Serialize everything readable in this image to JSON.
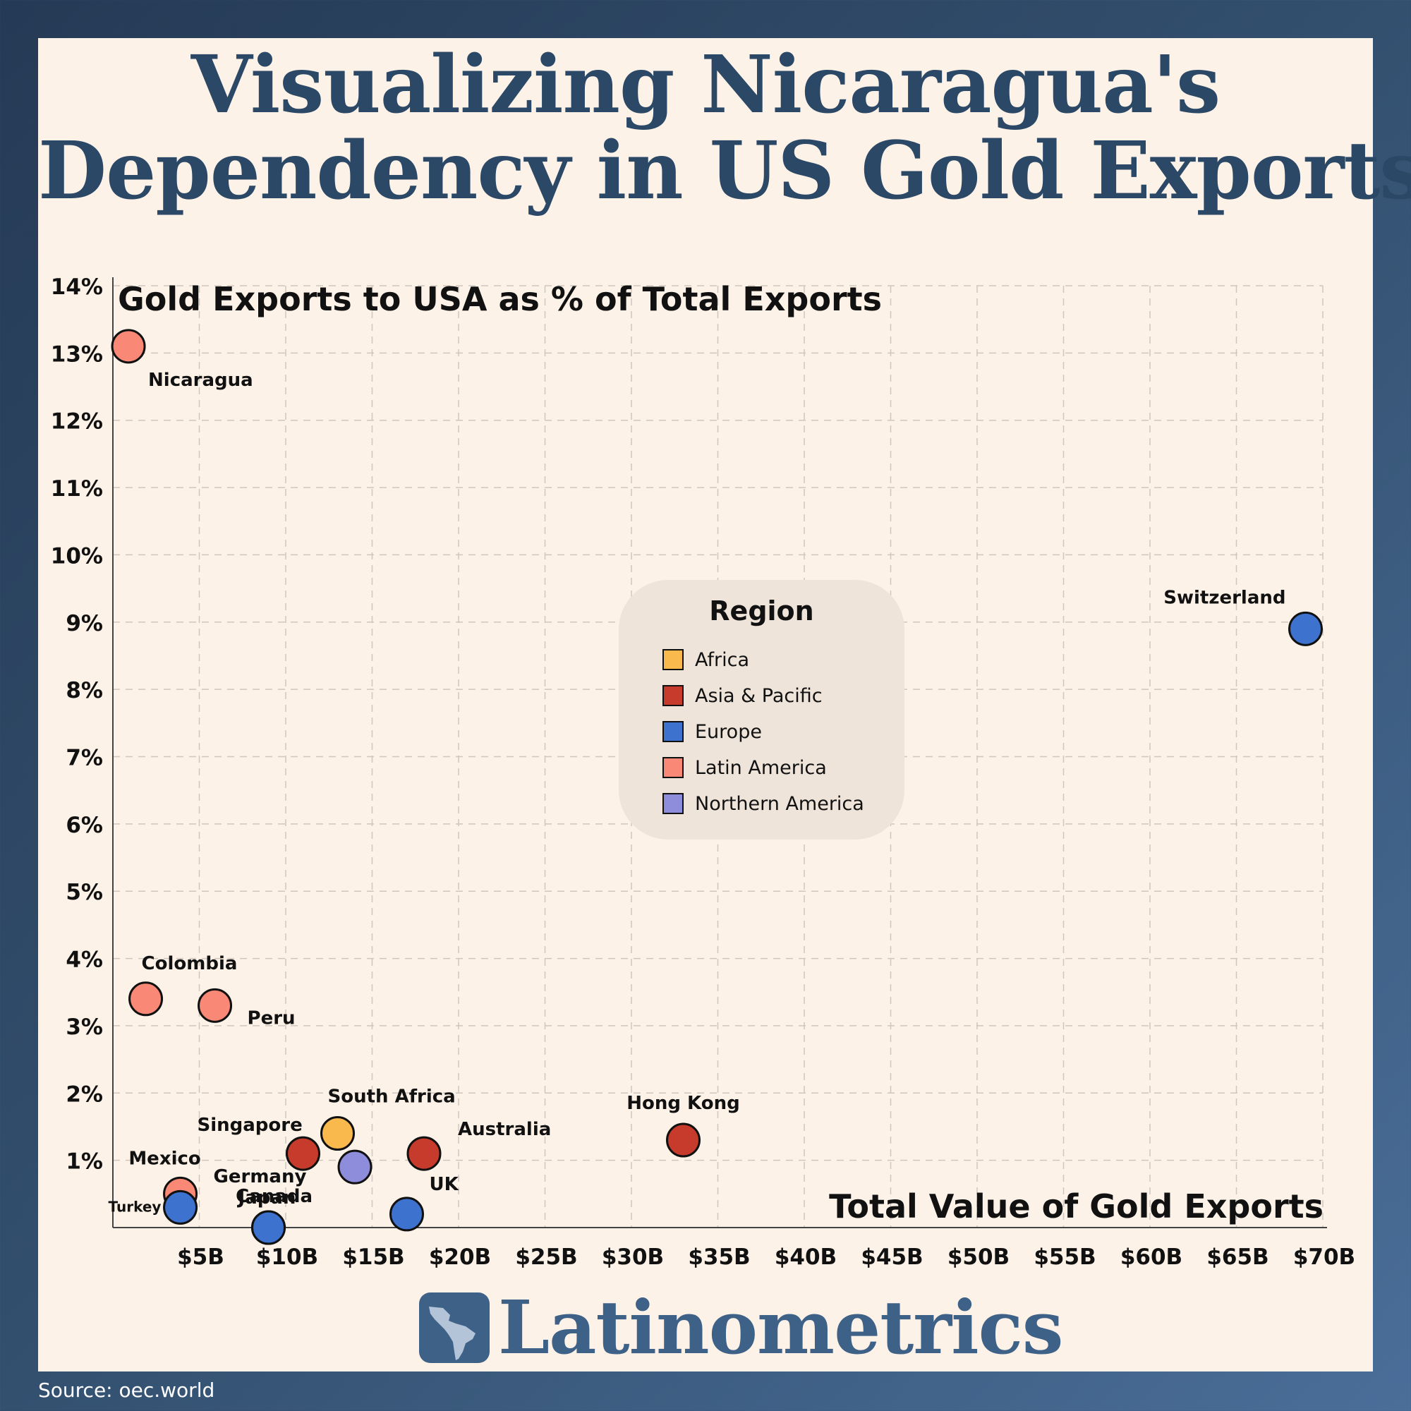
{
  "title": {
    "line1": "Visualizing Nicaragua's",
    "line2": "Dependency in US Gold Exports"
  },
  "colors": {
    "africa": "#f9b94c",
    "asia_pacific": "#c63b2c",
    "europe": "#3d72cf",
    "latin_america": "#f98976",
    "northern_america": "#8d8ddc",
    "title_blue": "#2b4866",
    "panel": "#fdf2e8"
  },
  "chart_data": {
    "type": "scatter",
    "title": "Gold Exports to USA as % of Total Exports",
    "xlabel": "Total Value of Gold Exports",
    "ylabel": "",
    "xlim": [
      0,
      70
    ],
    "ylim": [
      0,
      14
    ],
    "x_ticks": [
      "$5B",
      "$10B",
      "$15B",
      "$20B",
      "$25B",
      "$30B",
      "$35B",
      "$40B",
      "$45B",
      "$50B",
      "$55B",
      "$60B",
      "$65B",
      "$70B"
    ],
    "y_ticks": [
      "1%",
      "2%",
      "3%",
      "4%",
      "5%",
      "6%",
      "7%",
      "8%",
      "9%",
      "10%",
      "11%",
      "12%",
      "13%",
      "14%"
    ],
    "grid": true,
    "legend": {
      "title": "Region",
      "placement": "center-right",
      "entries": [
        {
          "label": "Africa",
          "color": "#f9b94c"
        },
        {
          "label": "Asia & Pacific",
          "color": "#c63b2c"
        },
        {
          "label": "Europe",
          "color": "#3d72cf"
        },
        {
          "label": "Latin America",
          "color": "#f98976"
        },
        {
          "label": "Northern America",
          "color": "#8d8ddc"
        }
      ]
    },
    "points": [
      {
        "label": "Nicaragua",
        "region": "Latin America",
        "x": 0.9,
        "y": 13.1,
        "label_pos": "below-right"
      },
      {
        "label": "Switzerland",
        "region": "Europe",
        "x": 69.0,
        "y": 8.9,
        "label_pos": "above-left"
      },
      {
        "label": "Colombia",
        "region": "Latin America",
        "x": 1.9,
        "y": 3.4,
        "label_pos": "above-right"
      },
      {
        "label": "Peru",
        "region": "Latin America",
        "x": 5.9,
        "y": 3.3,
        "label_pos": "below-right"
      },
      {
        "label": "South Africa",
        "region": "Africa",
        "x": 13.0,
        "y": 1.4,
        "label_pos": "above-right"
      },
      {
        "label": "Singapore",
        "region": "Asia & Pacific",
        "x": 11.0,
        "y": 1.1,
        "label_pos": "above-left"
      },
      {
        "label": "Australia",
        "region": "Asia & Pacific",
        "x": 18.0,
        "y": 1.1,
        "label_pos": "above-right"
      },
      {
        "label": "Hong Kong",
        "region": "Asia & Pacific",
        "x": 33.0,
        "y": 1.3,
        "label_pos": "above"
      },
      {
        "label": "Canada",
        "region": "Northern America",
        "x": 14.0,
        "y": 0.9,
        "label_pos": "below-left"
      },
      {
        "label": "Mexico",
        "region": "Latin America",
        "x": 3.9,
        "y": 0.5,
        "label_pos": "above-left"
      },
      {
        "label": "Turkey",
        "region": "Europe",
        "x": 3.9,
        "y": 0.3,
        "label_pos": "left"
      },
      {
        "label": "Germany",
        "region": "Europe",
        "x": 9.0,
        "y": 0.0,
        "label_pos": "above"
      },
      {
        "label": "Japan",
        "region": "Europe",
        "x": 9.0,
        "y": 0.0,
        "label_pos": "above"
      },
      {
        "label": "UK",
        "region": "Europe",
        "x": 17.0,
        "y": 0.2,
        "label_pos": "above-right"
      }
    ]
  },
  "logo": {
    "text": "Latinometrics",
    "icon": "latin-america-map-icon"
  },
  "source": "Source: oec.world"
}
